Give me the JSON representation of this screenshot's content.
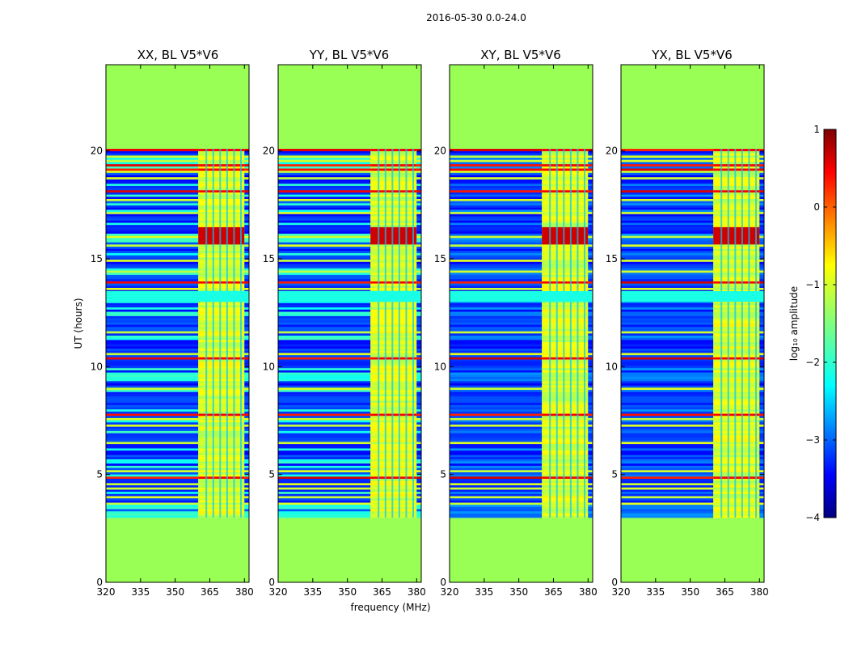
{
  "chart_data": {
    "type": "heatmap",
    "suptitle": "2016-05-30 0.0-24.0",
    "xlabel": "frequency (MHz)",
    "ylabel": "UT (hours)",
    "xlim": [
      320,
      382
    ],
    "ylim": [
      0,
      24
    ],
    "xticks": [
      320,
      335,
      350,
      365,
      380
    ],
    "yticks": [
      0,
      5,
      10,
      15,
      20
    ],
    "panels": [
      {
        "title": "XX, BL V5*V6",
        "polarization": "XX"
      },
      {
        "title": "YY, BL V5*V6",
        "polarization": "YY"
      },
      {
        "title": "XY, BL V5*V6",
        "polarization": "XY"
      },
      {
        "title": "YX, BL V5*V6",
        "polarization": "YX"
      }
    ],
    "data_time_range_hours": [
      3.0,
      20.1
    ],
    "gap_hours": [
      13.0,
      13.5
    ],
    "rfi_band_mhz": [
      360,
      380
    ],
    "no_data_level": -1.2,
    "colorbar": {
      "label": "log₁₀ amplitude",
      "range": [
        -4,
        1
      ],
      "ticks": [
        1,
        0,
        -1,
        -2,
        -3,
        -4
      ],
      "tick_labels": [
        "1",
        "0",
        "−1",
        "−2",
        "−3",
        "−4"
      ],
      "colormap": "jet"
    }
  },
  "colors": {
    "no_data": "#99ff55",
    "colormap_stops": [
      "#00007f",
      "#0000ff",
      "#007fff",
      "#00ffff",
      "#7fff7f",
      "#ffff00",
      "#ff7f00",
      "#ff0000",
      "#7f0000"
    ]
  }
}
